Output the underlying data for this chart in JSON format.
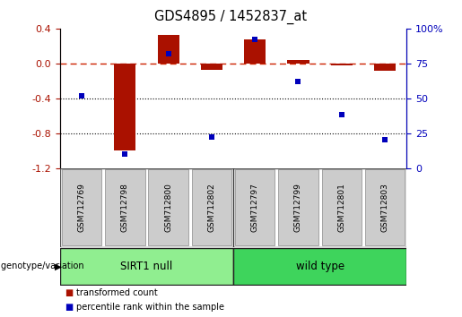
{
  "title": "GDS4895 / 1452837_at",
  "samples": [
    "GSM712769",
    "GSM712798",
    "GSM712800",
    "GSM712802",
    "GSM712797",
    "GSM712799",
    "GSM712801",
    "GSM712803"
  ],
  "transformed_count": [
    0.0,
    -1.0,
    0.33,
    -0.07,
    0.28,
    0.04,
    -0.02,
    -0.08
  ],
  "percentile_rank": [
    52,
    10,
    82,
    22,
    92,
    62,
    38,
    20
  ],
  "groups": [
    {
      "label": "SIRT1 null",
      "start": 0,
      "end": 4,
      "color": "#90EE90"
    },
    {
      "label": "wild type",
      "start": 4,
      "end": 8,
      "color": "#3ED45C"
    }
  ],
  "ylim_left": [
    -1.2,
    0.4
  ],
  "ylim_right": [
    0,
    100
  ],
  "yticks_left": [
    -1.2,
    -0.8,
    -0.4,
    0.0,
    0.4
  ],
  "yticks_right": [
    0,
    25,
    50,
    75,
    100
  ],
  "bar_color": "#AA1100",
  "dot_color": "#0000BB",
  "zero_line_color": "#CC2200",
  "dotted_line_color": "#000000",
  "background_color": "#FFFFFF",
  "plot_bg_color": "#FFFFFF",
  "label_box_color": "#CCCCCC",
  "label_red": "transformed count",
  "label_blue": "percentile rank within the sample",
  "group_label": "genotype/variation",
  "bar_width": 0.5
}
